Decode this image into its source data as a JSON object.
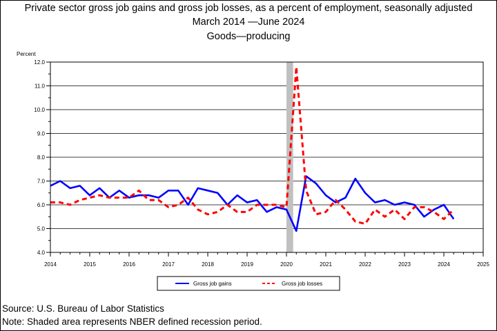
{
  "header": {
    "title": "Private sector gross job gains and gross job losses, as a percent of employment, seasonally adjusted",
    "subtitle": "March 2014 —June 2024",
    "industry": "Goods—producing"
  },
  "footer": {
    "source": "Source: U.S. Bureau of Labor Statistics",
    "note": "Note: Shaded area represents NBER defined recession period."
  },
  "chart_data": {
    "type": "line",
    "title": "Private sector gross job gains and gross job losses, as a percent of employment, seasonally adjusted",
    "subtitle": "March 2014 —June 2024",
    "panel_label": "Goods—producing",
    "ylabel": "Percent",
    "xlabel": "",
    "xlim": [
      2014,
      2025
    ],
    "ylim": [
      4.0,
      12.0
    ],
    "x_ticks": [
      "2014",
      "2015",
      "2016",
      "2017",
      "2018",
      "2019",
      "2020",
      "2021",
      "2022",
      "2023",
      "2024",
      "2025"
    ],
    "y_ticks": [
      "4.0",
      "5.0",
      "6.0",
      "7.0",
      "8.0",
      "9.0",
      "10.0",
      "11.0",
      "12.0"
    ],
    "grid": true,
    "legend_position": "bottom",
    "recession": {
      "start": 2020.0,
      "end": 2020.17
    },
    "quarters": [
      "2014Q1",
      "2014Q2",
      "2014Q3",
      "2014Q4",
      "2015Q1",
      "2015Q2",
      "2015Q3",
      "2015Q4",
      "2016Q1",
      "2016Q2",
      "2016Q3",
      "2016Q4",
      "2017Q1",
      "2017Q2",
      "2017Q3",
      "2017Q4",
      "2018Q1",
      "2018Q2",
      "2018Q3",
      "2018Q4",
      "2019Q1",
      "2019Q2",
      "2019Q3",
      "2019Q4",
      "2020Q1",
      "2020Q2",
      "2020Q3",
      "2020Q4",
      "2021Q1",
      "2021Q2",
      "2021Q3",
      "2021Q4",
      "2022Q1",
      "2022Q2",
      "2022Q3",
      "2022Q4",
      "2023Q1",
      "2023Q2",
      "2023Q3",
      "2023Q4",
      "2024Q1",
      "2024Q2"
    ],
    "x": [
      2014.0,
      2014.25,
      2014.5,
      2014.75,
      2015.0,
      2015.25,
      2015.5,
      2015.75,
      2016.0,
      2016.25,
      2016.5,
      2016.75,
      2017.0,
      2017.25,
      2017.5,
      2017.75,
      2018.0,
      2018.25,
      2018.5,
      2018.75,
      2019.0,
      2019.25,
      2019.5,
      2019.75,
      2020.0,
      2020.25,
      2020.5,
      2020.75,
      2021.0,
      2021.25,
      2021.5,
      2021.75,
      2022.0,
      2022.25,
      2022.5,
      2022.75,
      2023.0,
      2023.25,
      2023.5,
      2023.75,
      2024.0,
      2024.25
    ],
    "series": [
      {
        "name": "Gross job gains",
        "color": "#0000ff",
        "style": "solid",
        "values": [
          6.8,
          7.0,
          6.7,
          6.8,
          6.4,
          6.7,
          6.3,
          6.6,
          6.3,
          6.4,
          6.4,
          6.3,
          6.6,
          6.6,
          6.0,
          6.7,
          6.6,
          6.5,
          6.0,
          6.4,
          6.1,
          6.2,
          5.7,
          5.9,
          5.8,
          4.9,
          7.2,
          6.9,
          6.4,
          6.1,
          6.3,
          7.1,
          6.5,
          6.1,
          6.2,
          6.0,
          6.1,
          6.0,
          5.5,
          5.8,
          6.0,
          5.4
        ]
      },
      {
        "name": "Gross job losses",
        "color": "#ff0000",
        "style": "dashed",
        "values": [
          6.1,
          6.1,
          6.0,
          6.2,
          6.3,
          6.4,
          6.3,
          6.3,
          6.3,
          6.6,
          6.2,
          6.2,
          5.9,
          6.0,
          6.3,
          5.8,
          5.6,
          5.7,
          6.0,
          5.7,
          5.7,
          6.0,
          6.0,
          6.0,
          5.9,
          11.8,
          6.6,
          5.6,
          5.7,
          6.2,
          5.8,
          5.3,
          5.2,
          5.8,
          5.5,
          5.8,
          5.4,
          5.9,
          5.9,
          5.7,
          5.4,
          5.8
        ]
      }
    ]
  }
}
